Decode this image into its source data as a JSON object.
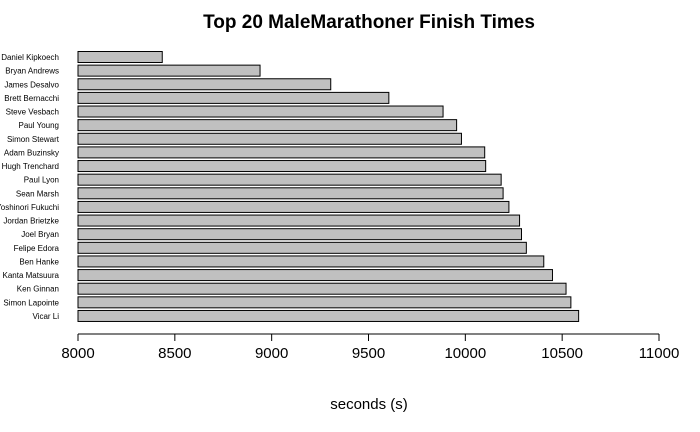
{
  "chart_data": {
    "type": "bar",
    "orientation": "horizontal",
    "title": "Top 20 MaleMarathoner Finish Times",
    "xlabel": "seconds (s)",
    "ylabel": "",
    "xlim": [
      8000,
      11000
    ],
    "xticks": [
      8000,
      8500,
      9000,
      9500,
      10000,
      10500,
      11000
    ],
    "bar_color": "#c0c0c0",
    "grid": false,
    "categories": [
      "Daniel Kipkoech",
      "Bryan Andrews",
      "James Desalvo",
      "Brett Bernacchi",
      "Steve Vesbach",
      "Paul Young",
      "Simon Stewart",
      "Adam Buzinsky",
      "Hugh Trenchard",
      "Paul Lyon",
      "Sean Marsh",
      "Yoshinori Fukuchi",
      "Jordan Brietzke",
      "Joel Bryan",
      "Felipe Edora",
      "Ben Hanke",
      "Kanta Matsuura",
      "Ken Ginnan",
      "Simon Lapointe",
      "Vicar Li"
    ],
    "values": [
      8435,
      8940,
      9305,
      9605,
      9885,
      9955,
      9980,
      10100,
      10105,
      10185,
      10195,
      10225,
      10280,
      10290,
      10315,
      10405,
      10450,
      10520,
      10545,
      10585
    ]
  }
}
